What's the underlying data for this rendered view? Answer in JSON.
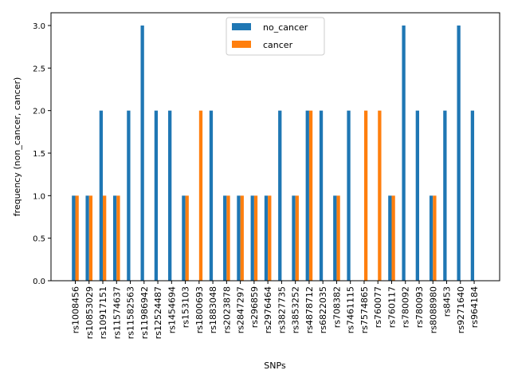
{
  "chart_data": {
    "type": "bar",
    "title": "",
    "xlabel": "SNPs",
    "ylabel": "frequency (non_cancer, cancer)",
    "ylim": [
      0,
      3.15
    ],
    "yticks": [
      "0.0",
      "0.5",
      "1.0",
      "1.5",
      "2.0",
      "2.5",
      "3.0"
    ],
    "grid": false,
    "legend_position": "top-center",
    "categories": [
      "rs1008456",
      "rs10853029",
      "rs10917151",
      "rs11574637",
      "rs11582563",
      "rs11986942",
      "rs12524487",
      "rs1454694",
      "rs153103",
      "rs1800693",
      "rs1883048",
      "rs2023878",
      "rs2847297",
      "rs296859",
      "rs2976464",
      "rs3827735",
      "rs3853252",
      "rs4878712",
      "rs6822035",
      "rs708382",
      "rs7461115",
      "rs7574865",
      "rs760077",
      "rs760117",
      "rs780092",
      "rs780093",
      "rs8088980",
      "rs8453",
      "rs9271640",
      "rs964184"
    ],
    "series": [
      {
        "name": "no_cancer",
        "color": "#1f77b4",
        "values": [
          1,
          1,
          2,
          1,
          2,
          3,
          2,
          2,
          1,
          0,
          2,
          1,
          1,
          1,
          1,
          2,
          1,
          2,
          2,
          1,
          2,
          0,
          0,
          1,
          3,
          2,
          1,
          2,
          3,
          2
        ]
      },
      {
        "name": "cancer",
        "color": "#ff7f0e",
        "values": [
          1,
          1,
          1,
          1,
          0,
          0,
          0,
          0,
          1,
          2,
          0,
          1,
          1,
          1,
          1,
          0,
          1,
          2,
          0,
          1,
          0,
          2,
          2,
          1,
          0,
          0,
          1,
          0,
          0,
          0
        ]
      }
    ]
  }
}
